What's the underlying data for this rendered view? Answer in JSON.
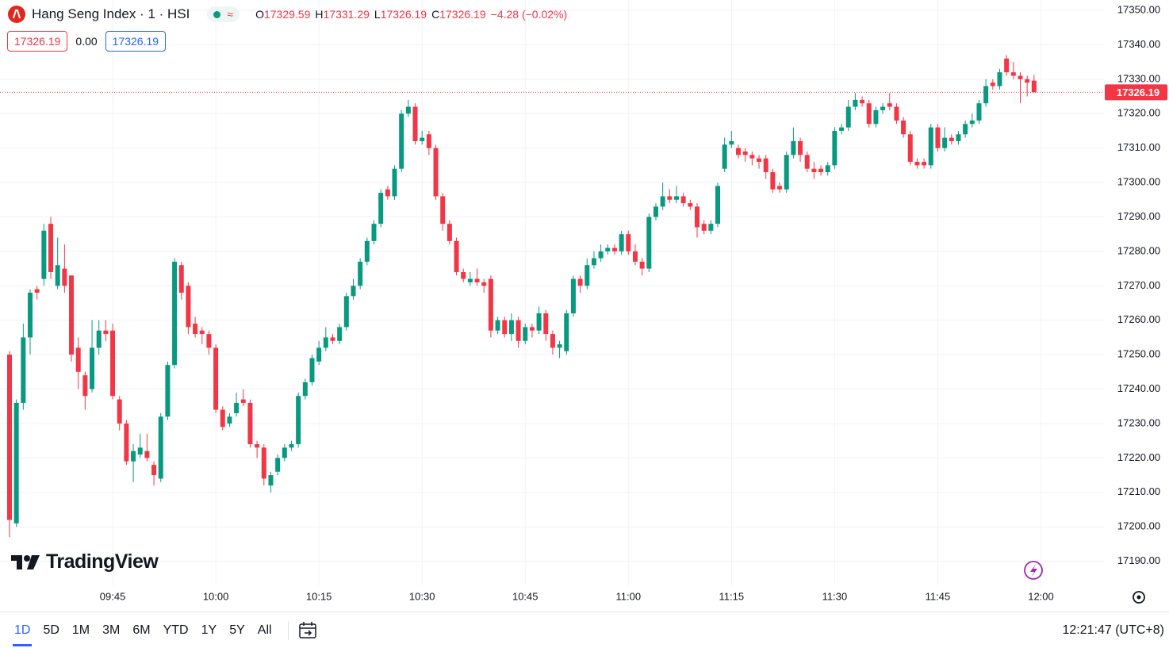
{
  "chart_data": {
    "type": "candlestick",
    "title": "Hang Seng Index · 1 · HSI",
    "ohlc_labels": [
      "O",
      "H",
      "L",
      "C"
    ],
    "change": "−4.28 (−0.02%)",
    "spread": "0.00",
    "up_color": "#089981",
    "down_color": "#f23645",
    "grid": true,
    "ylim": [
      17183,
      17353
    ],
    "yticks": [
      {
        "value": 17190,
        "label": "17190.00"
      },
      {
        "value": 17200,
        "label": "17200.00"
      },
      {
        "value": 17210,
        "label": "17210.00"
      },
      {
        "value": 17220,
        "label": "17220.00"
      },
      {
        "value": 17230,
        "label": "17230.00"
      },
      {
        "value": 17240,
        "label": "17240.00"
      },
      {
        "value": 17250,
        "label": "17250.00"
      },
      {
        "value": 17260,
        "label": "17260.00"
      },
      {
        "value": 17270,
        "label": "17270.00"
      },
      {
        "value": 17280,
        "label": "17280.00"
      },
      {
        "value": 17290,
        "label": "17290.00"
      },
      {
        "value": 17300,
        "label": "17300.00"
      },
      {
        "value": 17310,
        "label": "17310.00"
      },
      {
        "value": 17320,
        "label": "17320.00"
      },
      {
        "value": 17330,
        "label": "17330.00"
      },
      {
        "value": 17340,
        "label": "17340.00"
      },
      {
        "value": 17350,
        "label": "17350.00"
      }
    ],
    "xticks": [
      "09:45",
      "10:00",
      "10:15",
      "10:30",
      "10:45",
      "11:00",
      "11:15",
      "11:30",
      "11:45",
      "12:00"
    ],
    "x": [
      "09:30",
      "09:31",
      "09:32",
      "09:33",
      "09:34",
      "09:35",
      "09:36",
      "09:37",
      "09:38",
      "09:39",
      "09:40",
      "09:41",
      "09:42",
      "09:43",
      "09:44",
      "09:45",
      "09:46",
      "09:47",
      "09:48",
      "09:49",
      "09:50",
      "09:51",
      "09:52",
      "09:53",
      "09:54",
      "09:55",
      "09:56",
      "09:57",
      "09:58",
      "09:59",
      "10:00",
      "10:01",
      "10:02",
      "10:03",
      "10:04",
      "10:05",
      "10:06",
      "10:07",
      "10:08",
      "10:09",
      "10:10",
      "10:11",
      "10:12",
      "10:13",
      "10:14",
      "10:15",
      "10:16",
      "10:17",
      "10:18",
      "10:19",
      "10:20",
      "10:21",
      "10:22",
      "10:23",
      "10:24",
      "10:25",
      "10:26",
      "10:27",
      "10:28",
      "10:29",
      "10:30",
      "10:31",
      "10:32",
      "10:33",
      "10:34",
      "10:35",
      "10:36",
      "10:37",
      "10:38",
      "10:39",
      "10:40",
      "10:41",
      "10:42",
      "10:43",
      "10:44",
      "10:45",
      "10:46",
      "10:47",
      "10:48",
      "10:49",
      "10:50",
      "10:51",
      "10:52",
      "10:53",
      "10:54",
      "10:55",
      "10:56",
      "10:57",
      "10:58",
      "10:59",
      "11:00",
      "11:01",
      "11:02",
      "11:03",
      "11:04",
      "11:05",
      "11:06",
      "11:07",
      "11:08",
      "11:09",
      "11:10",
      "11:11",
      "11:12",
      "11:13",
      "11:14",
      "11:15",
      "11:16",
      "11:17",
      "11:18",
      "11:19",
      "11:20",
      "11:21",
      "11:22",
      "11:23",
      "11:24",
      "11:25",
      "11:26",
      "11:27",
      "11:28",
      "11:29",
      "11:30",
      "11:31",
      "11:32",
      "11:33",
      "11:34",
      "11:35",
      "11:36",
      "11:37",
      "11:38",
      "11:39",
      "11:40",
      "11:41",
      "11:42",
      "11:43",
      "11:44",
      "11:45",
      "11:46",
      "11:47",
      "11:48",
      "11:49",
      "11:50",
      "11:51",
      "11:52",
      "11:53",
      "11:54",
      "11:55",
      "11:56",
      "11:57",
      "11:58",
      "11:59"
    ],
    "open": [
      17250,
      17201,
      17236,
      17255,
      17269,
      17272,
      17288,
      17270,
      17275,
      17273,
      17252,
      17244,
      17240,
      17252,
      17257,
      17257,
      17237,
      17230,
      17219,
      17221,
      17222,
      17218,
      17214,
      17232,
      17247,
      17276,
      17270,
      17259,
      17257,
      17256,
      17252,
      17234,
      17230,
      17233,
      17237,
      17236,
      17224,
      17223,
      17212,
      17216,
      17220,
      17223,
      17224,
      17238,
      17242,
      17248,
      17252,
      17255,
      17254,
      17258,
      17267,
      17270,
      17277,
      17283,
      17288,
      17298,
      17296,
      17304,
      17320,
      17322,
      17312,
      17314,
      17310,
      17296,
      17288,
      17283,
      17274,
      17271,
      17272,
      17271,
      17272,
      17257,
      17260,
      17256,
      17260,
      17254,
      17258,
      17257,
      17262,
      17256,
      17252,
      17251,
      17262,
      17272,
      17270,
      17276,
      17278,
      17280,
      17281,
      17280,
      17285,
      17280,
      17277,
      17275,
      17290,
      17293,
      17296,
      17295,
      17296,
      17294,
      17293,
      17288,
      17286,
      17288,
      17304,
      17311,
      17310,
      17309,
      17308,
      17307,
      17307,
      17303,
      17299,
      17298,
      17308,
      17312,
      17308,
      17304,
      17304,
      17303,
      17305,
      17315,
      17316,
      17322,
      17324,
      17323,
      17317,
      17321,
      17323,
      17322,
      17318,
      17314,
      17306,
      17306,
      17305,
      17316,
      17310,
      17313,
      17312,
      17314,
      17317,
      17318,
      17323,
      17329,
      17328,
      17336,
      17332,
      17331,
      17330,
      17329.59
    ],
    "high": [
      17251,
      17237,
      17259,
      17269,
      17270,
      17288,
      17290,
      17284,
      17282,
      17273,
      17255,
      17245,
      17260,
      17260,
      17260,
      17259,
      17238,
      17231,
      17224,
      17227,
      17227,
      17219,
      17233,
      17248,
      17278,
      17277,
      17271,
      17261,
      17258,
      17257,
      17253,
      17235,
      17233,
      17239,
      17240,
      17237,
      17225,
      17224,
      17216,
      17221,
      17224,
      17225,
      17239,
      17243,
      17250,
      17254,
      17258,
      17256,
      17259,
      17268,
      17272,
      17278,
      17284,
      17289,
      17298,
      17299,
      17305,
      17321,
      17324,
      17323,
      17315,
      17315,
      17311,
      17297,
      17289,
      17284,
      17275,
      17274,
      17275,
      17272,
      17273,
      17261,
      17261,
      17262,
      17261,
      17259,
      17259,
      17264,
      17263,
      17257,
      17254,
      17263,
      17273,
      17273,
      17278,
      17280,
      17282,
      17282,
      17282,
      17286,
      17286,
      17282,
      17278,
      17291,
      17294,
      17300,
      17298,
      17299,
      17297,
      17295,
      17294,
      17289,
      17289,
      17300,
      17313,
      17315,
      17311,
      17310,
      17309,
      17308,
      17308,
      17304,
      17300,
      17309,
      17316,
      17313,
      17309,
      17306,
      17305,
      17306,
      17316,
      17317,
      17324,
      17326,
      17325,
      17324,
      17322,
      17323,
      17326,
      17323,
      17319,
      17315,
      17307,
      17307,
      17317,
      17317,
      17316,
      17314,
      17315,
      17318,
      17320,
      17324,
      17330,
      17330,
      17333,
      17337,
      17335,
      17332,
      17331,
      17331.29
    ],
    "low": [
      17197,
      17200,
      17234,
      17250,
      17266,
      17270,
      17272,
      17269,
      17268,
      17248,
      17240,
      17234,
      17239,
      17250,
      17254,
      17237,
      17228,
      17218,
      17213,
      17220,
      17219,
      17212,
      17213,
      17231,
      17246,
      17266,
      17256,
      17255,
      17253,
      17250,
      17233,
      17228,
      17229,
      17232,
      17235,
      17223,
      17220,
      17212,
      17210,
      17215,
      17219,
      17222,
      17223,
      17237,
      17241,
      17247,
      17251,
      17253,
      17253,
      17257,
      17266,
      17269,
      17276,
      17282,
      17287,
      17295,
      17295,
      17303,
      17319,
      17311,
      17311,
      17308,
      17295,
      17286,
      17282,
      17273,
      17271,
      17270,
      17270,
      17268,
      17255,
      17256,
      17255,
      17254,
      17252,
      17253,
      17255,
      17256,
      17254,
      17250,
      17249,
      17250,
      17261,
      17268,
      17269,
      17275,
      17277,
      17279,
      17279,
      17279,
      17279,
      17276,
      17273,
      17274,
      17289,
      17292,
      17294,
      17294,
      17293,
      17292,
      17284,
      17285,
      17285,
      17287,
      17303,
      17310,
      17307,
      17306,
      17305,
      17304,
      17301,
      17297,
      17297,
      17297,
      17307,
      17306,
      17303,
      17301,
      17302,
      17302,
      17304,
      17314,
      17315,
      17321,
      17322,
      17316,
      17316,
      17320,
      17321,
      17317,
      17313,
      17305,
      17304,
      17304,
      17304,
      17309,
      17309,
      17311,
      17311,
      17313,
      17316,
      17317,
      17322,
      17327,
      17327,
      17331,
      17330,
      17323,
      17325,
      17326.19
    ],
    "close": [
      17202,
      17236,
      17255,
      17268,
      17268,
      17286,
      17274,
      17276,
      17270,
      17250,
      17245,
      17238,
      17252,
      17257,
      17256,
      17238,
      17230,
      17219,
      17222,
      17223,
      17220,
      17215,
      17232,
      17247,
      17277,
      17268,
      17258,
      17256,
      17256,
      17252,
      17234,
      17229,
      17232,
      17236,
      17236,
      17224,
      17223,
      17214,
      17215,
      17220,
      17223,
      17224,
      17238,
      17242,
      17249,
      17252,
      17255,
      17254,
      17258,
      17267,
      17270,
      17277,
      17283,
      17288,
      17297,
      17296,
      17304,
      17320,
      17322,
      17312,
      17313,
      17310,
      17296,
      17288,
      17283,
      17274,
      17272,
      17272,
      17271,
      17270,
      17257,
      17260,
      17256,
      17260,
      17254,
      17258,
      17257,
      17262,
      17256,
      17252,
      17253,
      17262,
      17272,
      17270,
      17276,
      17278,
      17280,
      17281,
      17280,
      17285,
      17280,
      17277,
      17275,
      17290,
      17293,
      17296,
      17295,
      17296,
      17294,
      17293,
      17287,
      17286,
      17288,
      17299,
      17311,
      17312,
      17308,
      17308,
      17307,
      17306,
      17303,
      17298,
      17298,
      17308,
      17312,
      17308,
      17304,
      17303,
      17303,
      17305,
      17315,
      17316,
      17322,
      17324,
      17323,
      17317,
      17321,
      17322,
      17322,
      17318,
      17314,
      17306,
      17305,
      17305,
      17316,
      17310,
      17313,
      17312,
      17314,
      17317,
      17318,
      17323,
      17328,
      17328,
      17332,
      17332,
      17331,
      17330,
      17329,
      17326.19
    ]
  },
  "toolbar": {
    "ranges": [
      "1D",
      "5D",
      "1M",
      "3M",
      "6M",
      "YTD",
      "1Y",
      "5Y",
      "All"
    ],
    "clock": "12:21:47 (UTC+8)"
  },
  "brand": "TradingView"
}
